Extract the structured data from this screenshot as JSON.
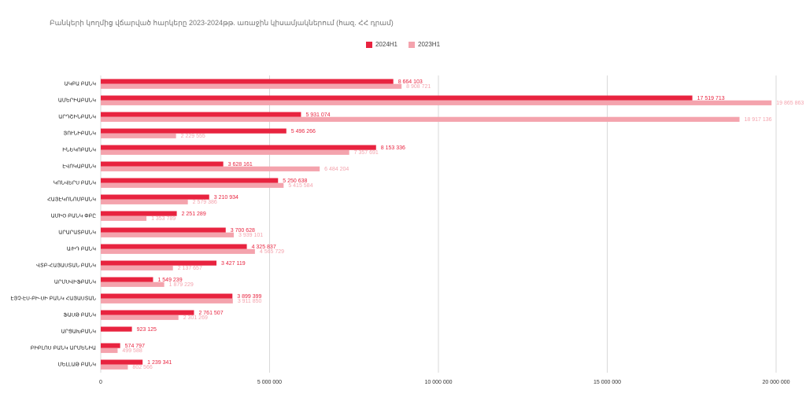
{
  "chart_data": {
    "type": "bar",
    "orientation": "horizontal",
    "title": "Բանկերի կողմից վճարված հարկերը 2023-2024թթ. առաջին կիսամյակներում (հազ. ՀՀ դրամ)",
    "categories": [
      "ԱԿԲԱ ԲԱՆԿ",
      "ԱՄԵՐԻԱԲԱՆԿ",
      "ԱՐԴՇԻՆԲԱՆԿ",
      "ՅՈՒՆԻԲԱՆԿ",
      "ԻՆԵԿՈԲԱՆԿ",
      "ԷՎՈԿԱԲԱՆԿ",
      "ԿՈՆՎԵՐՍ ԲԱՆԿ",
      "ՀԱՅԷԿՈՆՈՄԲԱՆԿ",
      "ԱՄԻՕ ԲԱՆԿ ՓԲԸ",
      "ԱՐԱՐԱՏԲԱՆԿ",
      "Ա/ԻԴ ԲԱՆԿ",
      "ՎՏԲ-ՀԱՅԱՍՏԱՆ ԲԱՆԿ",
      "ԱՐՄՍՎԻՖԲԱՆԿ",
      "ԷՅՉ-ԷՍ-ԲԻ-ՍԻ ԲԱՆԿ ՀԱՅԱՍՏԱՆ",
      "ՖԱՍԹ ԲԱՆԿ",
      "ԱՐՑԱԽԲԱՆԿ",
      "ԲԻԲԼՈՍ ԲԱՆԿ ԱՐՄԵՆԻԱ",
      "ՄԵԼԼԱԹ ԲԱՆԿ"
    ],
    "series": [
      {
        "name": "2024H1",
        "color": "#e8233f",
        "values": [
          8664103,
          17519713,
          5931074,
          5496266,
          8153336,
          3628161,
          5250638,
          3210934,
          2251289,
          3700628,
          4325837,
          3427119,
          1549239,
          3899399,
          2761507,
          923125,
          574797,
          1239341
        ],
        "labels": [
          "8 664 103",
          "17 519 713",
          "5 931 074",
          "5 496 266",
          "8 153 336",
          "3 628 161",
          "5 250 638",
          "3 210 934",
          "2 251 289",
          "3 700 628",
          "4 325 837",
          "3 427 119",
          "1 549 239",
          "3 899 399",
          "2 761 507",
          "923 125",
          "574 797",
          "1 239 341"
        ]
      },
      {
        "name": "2023H1",
        "color": "#f4a3ad",
        "values": [
          8908721,
          19865863,
          18917136,
          2229555,
          7357691,
          6484204,
          5415584,
          2579386,
          1353789,
          3939101,
          4565729,
          2137657,
          1879229,
          3911850,
          2301269,
          null,
          499588,
          802566
        ],
        "labels": [
          "8 908 721",
          "19 865 863",
          "18 917 136",
          "2 229 555",
          "7 357 691",
          "6 484 204",
          "5 415 584",
          "2 579 386",
          "1 353 789",
          "3 939 101",
          "4 565 729",
          "2 137 657",
          "1 879 229",
          "3 911 850",
          "2 301 269",
          "",
          "499 588",
          "802 566"
        ]
      }
    ],
    "xaxis": {
      "min": 0,
      "max": 20000000,
      "ticks": [
        0,
        5000000,
        10000000,
        15000000,
        20000000
      ],
      "tick_labels": [
        "0",
        "5 000 000",
        "10 000 000",
        "15 000 000",
        "20 000 000"
      ]
    },
    "grid": true,
    "legend_position": "top-center"
  }
}
